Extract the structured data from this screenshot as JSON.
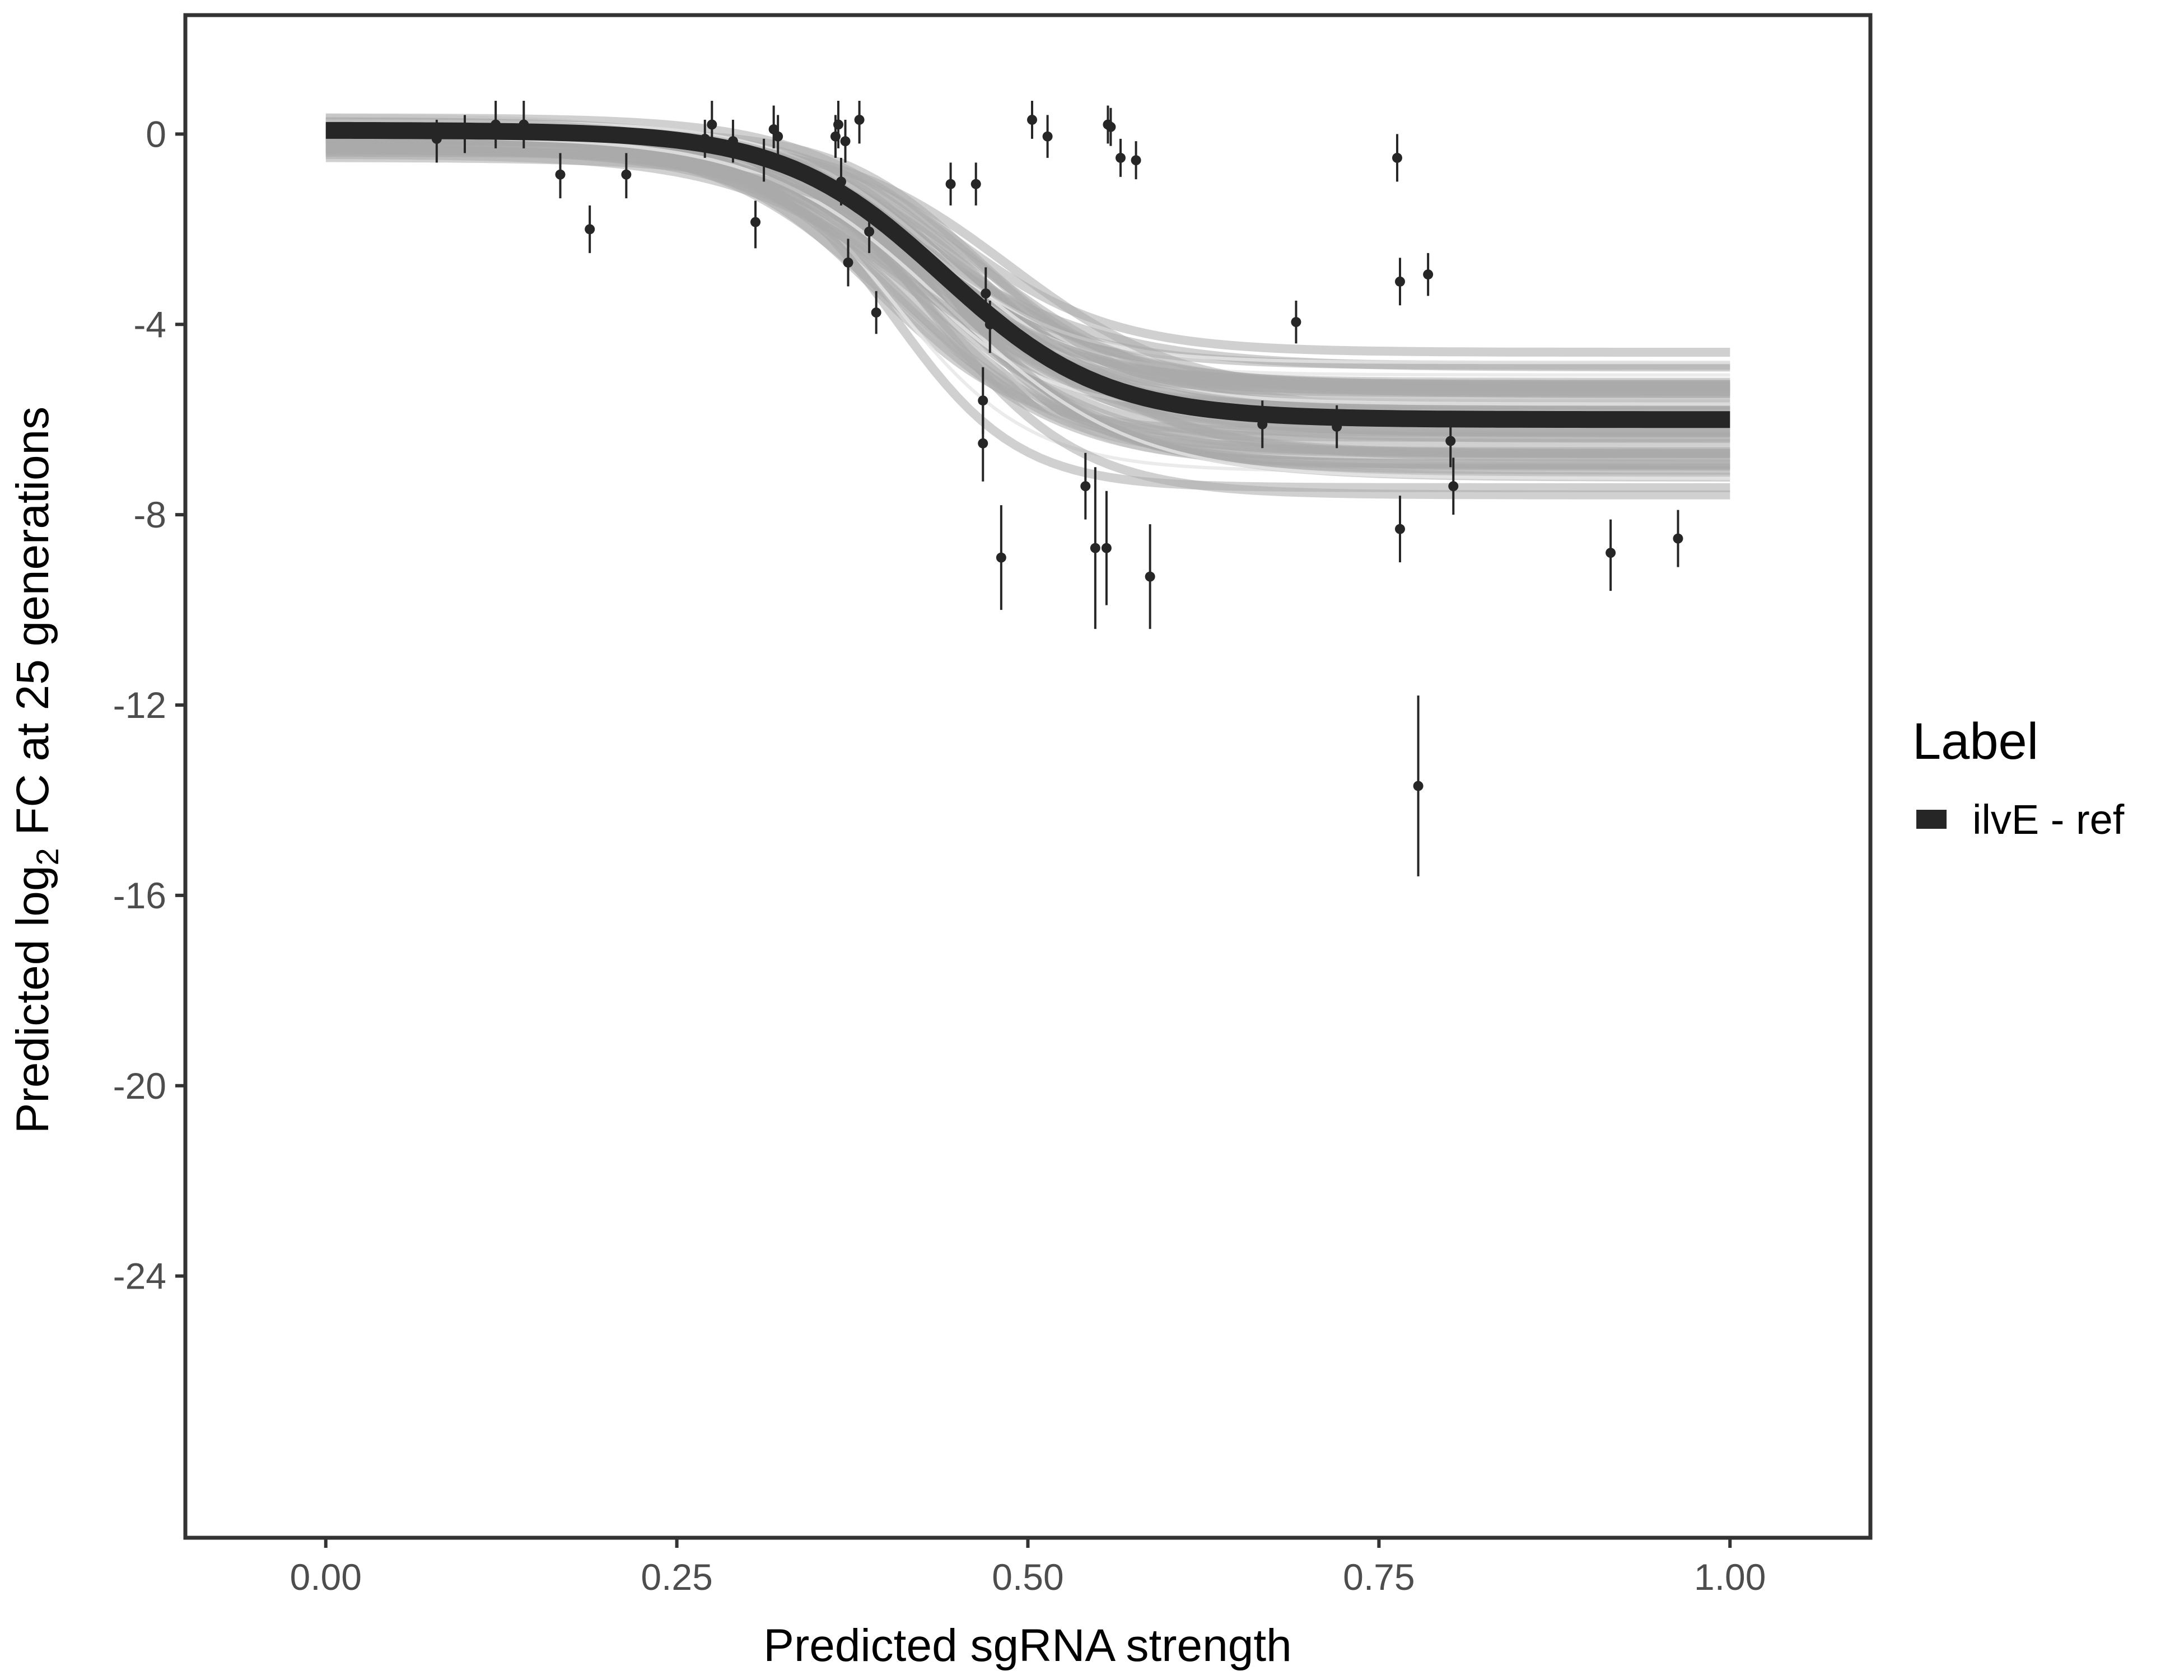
{
  "chart_data": {
    "type": "scatter",
    "xlabel": "Predicted sgRNA strength",
    "ylabel_parts": [
      "Predicted  log",
      "2",
      " FC at 25 generations"
    ],
    "xlim": [
      -0.1,
      1.1
    ],
    "ylim": [
      -29.5,
      2.5
    ],
    "x_ticks": [
      0.0,
      0.25,
      0.5,
      0.75,
      1.0
    ],
    "x_tick_labels": [
      "0.00",
      "0.25",
      "0.50",
      "0.75",
      "1.00"
    ],
    "y_ticks": [
      0,
      -4,
      -8,
      -12,
      -16,
      -20,
      -24
    ],
    "y_tick_labels": [
      "0",
      "-4",
      "-8",
      "-12",
      "-16",
      "-20",
      "-24"
    ],
    "grid": false,
    "legend": {
      "title": "Label",
      "position": "right",
      "entries": [
        {
          "label": "ilvE - ref",
          "color": "#262626"
        }
      ]
    },
    "colors": {
      "fit_line": "#262626",
      "band": "#aaaaaa",
      "points": "#262626",
      "panel_border": "#333333"
    },
    "fit_curve": {
      "model": "sigmoid",
      "upper": 0.08,
      "lower": -6.0,
      "midpoint": 0.44,
      "scale": 0.057
    },
    "posterior_band_samples": 60,
    "points": [
      {
        "x": 0.079,
        "y": -0.1,
        "lo": -0.6,
        "hi": 0.3
      },
      {
        "x": 0.099,
        "y": 0.0,
        "lo": -0.4,
        "hi": 0.4
      },
      {
        "x": 0.121,
        "y": 0.2,
        "lo": -0.3,
        "hi": 0.7
      },
      {
        "x": 0.141,
        "y": 0.2,
        "lo": -0.3,
        "hi": 0.7
      },
      {
        "x": 0.167,
        "y": -0.85,
        "lo": -1.35,
        "hi": -0.4
      },
      {
        "x": 0.188,
        "y": -2.0,
        "lo": -2.5,
        "hi": -1.5
      },
      {
        "x": 0.214,
        "y": -0.85,
        "lo": -1.35,
        "hi": -0.4
      },
      {
        "x": 0.27,
        "y": -0.1,
        "lo": -0.5,
        "hi": 0.3
      },
      {
        "x": 0.275,
        "y": 0.2,
        "lo": -0.3,
        "hi": 0.7
      },
      {
        "x": 0.29,
        "y": -0.15,
        "lo": -0.6,
        "hi": 0.3
      },
      {
        "x": 0.306,
        "y": -1.85,
        "lo": -2.4,
        "hi": -1.4
      },
      {
        "x": 0.312,
        "y": -0.55,
        "lo": -1.0,
        "hi": -0.1
      },
      {
        "x": 0.319,
        "y": 0.1,
        "lo": -0.3,
        "hi": 0.6
      },
      {
        "x": 0.322,
        "y": -0.05,
        "lo": -0.5,
        "hi": 0.4
      },
      {
        "x": 0.363,
        "y": -0.05,
        "lo": -0.5,
        "hi": 0.4
      },
      {
        "x": 0.365,
        "y": 0.2,
        "lo": -0.3,
        "hi": 0.7
      },
      {
        "x": 0.367,
        "y": -1.0,
        "lo": -1.5,
        "hi": -0.5
      },
      {
        "x": 0.37,
        "y": -0.15,
        "lo": -0.6,
        "hi": 0.3
      },
      {
        "x": 0.372,
        "y": -2.7,
        "lo": -3.2,
        "hi": -2.2
      },
      {
        "x": 0.38,
        "y": 0.3,
        "lo": -0.2,
        "hi": 0.7
      },
      {
        "x": 0.387,
        "y": -2.05,
        "lo": -2.5,
        "hi": -1.6
      },
      {
        "x": 0.392,
        "y": -3.75,
        "lo": -4.2,
        "hi": -3.3
      },
      {
        "x": 0.445,
        "y": -1.05,
        "lo": -1.5,
        "hi": -0.6
      },
      {
        "x": 0.463,
        "y": -1.05,
        "lo": -1.5,
        "hi": -0.6
      },
      {
        "x": 0.47,
        "y": -3.35,
        "lo": -3.9,
        "hi": -2.8
      },
      {
        "x": 0.468,
        "y": -5.6,
        "lo": -6.3,
        "hi": -4.9
      },
      {
        "x": 0.468,
        "y": -6.5,
        "lo": -7.3,
        "hi": -5.7
      },
      {
        "x": 0.473,
        "y": -4.0,
        "lo": -4.6,
        "hi": -3.5
      },
      {
        "x": 0.481,
        "y": -8.9,
        "lo": -10.0,
        "hi": -7.8
      },
      {
        "x": 0.503,
        "y": 0.3,
        "lo": -0.1,
        "hi": 0.7
      },
      {
        "x": 0.514,
        "y": -0.05,
        "lo": -0.5,
        "hi": 0.4
      },
      {
        "x": 0.541,
        "y": -7.4,
        "lo": -8.1,
        "hi": -6.7
      },
      {
        "x": 0.548,
        "y": -8.7,
        "lo": -10.4,
        "hi": -7.0
      },
      {
        "x": 0.556,
        "y": -8.7,
        "lo": -9.9,
        "hi": -7.5
      },
      {
        "x": 0.557,
        "y": 0.2,
        "lo": -0.2,
        "hi": 0.6
      },
      {
        "x": 0.559,
        "y": 0.15,
        "lo": -0.25,
        "hi": 0.55
      },
      {
        "x": 0.566,
        "y": -0.5,
        "lo": -0.9,
        "hi": -0.1
      },
      {
        "x": 0.577,
        "y": -0.55,
        "lo": -0.95,
        "hi": -0.15
      },
      {
        "x": 0.587,
        "y": -9.3,
        "lo": -10.4,
        "hi": -8.2
      },
      {
        "x": 0.667,
        "y": -6.1,
        "lo": -6.6,
        "hi": -5.6
      },
      {
        "x": 0.691,
        "y": -3.95,
        "lo": -4.4,
        "hi": -3.5
      },
      {
        "x": 0.72,
        "y": -6.15,
        "lo": -6.6,
        "hi": -5.7
      },
      {
        "x": 0.763,
        "y": -0.5,
        "lo": -1.0,
        "hi": 0.0
      },
      {
        "x": 0.765,
        "y": -3.1,
        "lo": -3.6,
        "hi": -2.6
      },
      {
        "x": 0.765,
        "y": -8.3,
        "lo": -9.0,
        "hi": -7.6
      },
      {
        "x": 0.778,
        "y": -13.7,
        "lo": -15.6,
        "hi": -11.8
      },
      {
        "x": 0.785,
        "y": -2.95,
        "lo": -3.4,
        "hi": -2.5
      },
      {
        "x": 0.801,
        "y": -6.45,
        "lo": -7.0,
        "hi": -5.9
      },
      {
        "x": 0.803,
        "y": -7.4,
        "lo": -8.0,
        "hi": -6.8
      },
      {
        "x": 0.915,
        "y": -8.8,
        "lo": -9.6,
        "hi": -8.1
      },
      {
        "x": 0.963,
        "y": -8.5,
        "lo": -9.1,
        "hi": -7.9
      }
    ]
  }
}
